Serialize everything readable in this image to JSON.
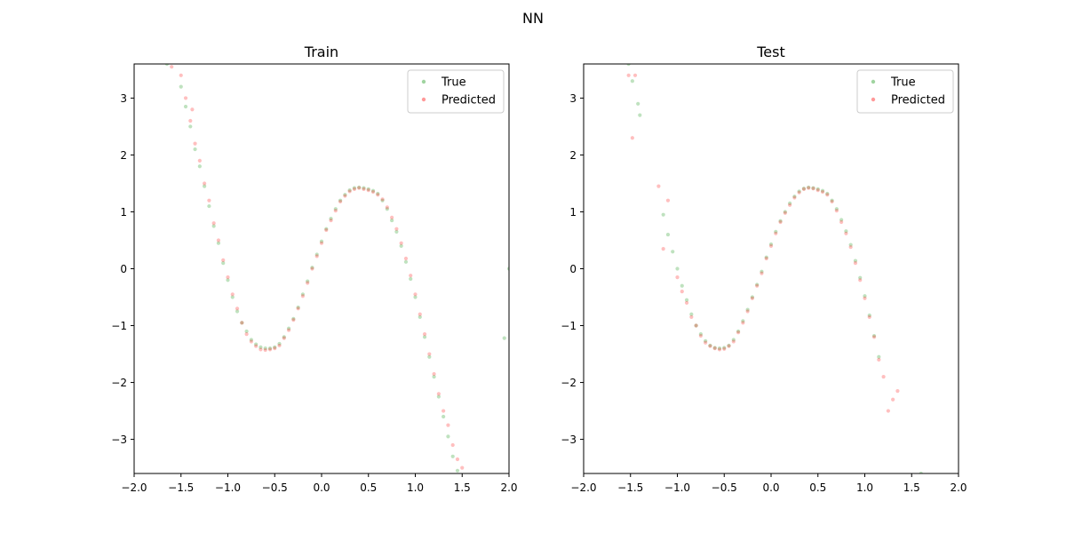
{
  "figure": {
    "title": "NN"
  },
  "colors": {
    "true": "#2ca02c",
    "predicted": "#ff0000",
    "axis": "#000000"
  },
  "chart_data": [
    {
      "type": "scatter",
      "title": "Train",
      "xlabel": "",
      "ylabel": "",
      "xlim": [
        -2.0,
        2.0
      ],
      "ylim": [
        -3.6,
        3.6
      ],
      "xticks": [
        -2.0,
        -1.5,
        -1.0,
        -0.5,
        0.0,
        0.5,
        1.0,
        1.5,
        2.0
      ],
      "xtick_labels": [
        "−2.0",
        "−1.5",
        "−1.0",
        "−0.5",
        "0.0",
        "0.5",
        "1.0",
        "1.5",
        "2.0"
      ],
      "yticks": [
        -3,
        -2,
        -1,
        0,
        1,
        2,
        3
      ],
      "ytick_labels": [
        "−3",
        "−2",
        "−1",
        "0",
        "1",
        "2",
        "3"
      ],
      "grid": false,
      "legend": "top-right",
      "series": [
        {
          "name": "True",
          "color": "#2ca02c",
          "alpha": 0.3,
          "x": [
            -1.65,
            -1.5,
            -1.45,
            -1.4,
            -1.35,
            -1.3,
            -1.25,
            -1.2,
            -1.15,
            -1.1,
            -1.05,
            -1.0,
            -0.95,
            -0.9,
            -0.85,
            -0.8,
            -0.75,
            -0.7,
            -0.65,
            -0.6,
            -0.55,
            -0.5,
            -0.45,
            -0.4,
            -0.35,
            -0.3,
            -0.25,
            -0.2,
            -0.15,
            -0.1,
            -0.05,
            0.0,
            0.05,
            0.1,
            0.15,
            0.2,
            0.25,
            0.3,
            0.35,
            0.4,
            0.45,
            0.5,
            0.55,
            0.6,
            0.65,
            0.7,
            0.75,
            0.8,
            0.85,
            0.9,
            0.95,
            1.0,
            1.05,
            1.1,
            1.15,
            1.2,
            1.25,
            1.3,
            1.35,
            1.4,
            1.45,
            1.5,
            1.55,
            1.6,
            1.95,
            2.0
          ],
          "y": [
            3.6,
            3.2,
            2.85,
            2.5,
            2.1,
            1.8,
            1.45,
            1.1,
            0.75,
            0.45,
            0.1,
            -0.2,
            -0.5,
            -0.75,
            -0.95,
            -1.1,
            -1.25,
            -1.33,
            -1.38,
            -1.4,
            -1.4,
            -1.38,
            -1.32,
            -1.2,
            -1.05,
            -0.88,
            -0.68,
            -0.45,
            -0.22,
            0.02,
            0.25,
            0.48,
            0.7,
            0.88,
            1.05,
            1.2,
            1.3,
            1.38,
            1.42,
            1.43,
            1.42,
            1.4,
            1.37,
            1.32,
            1.2,
            1.05,
            0.85,
            0.65,
            0.4,
            0.12,
            -0.18,
            -0.5,
            -0.85,
            -1.2,
            -1.55,
            -1.9,
            -2.25,
            -2.6,
            -2.95,
            -3.3,
            -3.55,
            -3.7,
            -3.8,
            -3.85,
            -1.22,
            0.0
          ]
        },
        {
          "name": "Predicted",
          "color": "#ff0000",
          "alpha": 0.25,
          "x": [
            -1.6,
            -1.5,
            -1.45,
            -1.4,
            -1.38,
            -1.35,
            -1.3,
            -1.25,
            -1.2,
            -1.15,
            -1.1,
            -1.05,
            -1.0,
            -0.95,
            -0.9,
            -0.85,
            -0.8,
            -0.75,
            -0.7,
            -0.65,
            -0.6,
            -0.55,
            -0.5,
            -0.45,
            -0.4,
            -0.35,
            -0.3,
            -0.25,
            -0.2,
            -0.15,
            -0.1,
            -0.05,
            0.0,
            0.05,
            0.1,
            0.15,
            0.2,
            0.25,
            0.3,
            0.35,
            0.4,
            0.45,
            0.5,
            0.55,
            0.6,
            0.65,
            0.7,
            0.75,
            0.8,
            0.85,
            0.9,
            0.95,
            1.0,
            1.05,
            1.1,
            1.15,
            1.2,
            1.25,
            1.3,
            1.35,
            1.4,
            1.45,
            1.5
          ],
          "y": [
            3.55,
            3.4,
            3.0,
            2.6,
            2.8,
            2.2,
            1.9,
            1.5,
            1.2,
            0.8,
            0.5,
            0.15,
            -0.15,
            -0.45,
            -0.7,
            -0.95,
            -1.15,
            -1.28,
            -1.36,
            -1.42,
            -1.43,
            -1.42,
            -1.4,
            -1.35,
            -1.22,
            -1.08,
            -0.9,
            -0.7,
            -0.48,
            -0.25,
            0.0,
            0.22,
            0.45,
            0.68,
            0.85,
            1.02,
            1.18,
            1.28,
            1.36,
            1.4,
            1.42,
            1.4,
            1.38,
            1.35,
            1.3,
            1.22,
            1.08,
            0.9,
            0.7,
            0.45,
            0.18,
            -0.12,
            -0.45,
            -0.8,
            -1.15,
            -1.5,
            -1.85,
            -2.2,
            -2.5,
            -2.75,
            -3.1,
            -3.35,
            -3.5
          ]
        }
      ]
    },
    {
      "type": "scatter",
      "title": "Test",
      "xlabel": "",
      "ylabel": "",
      "xlim": [
        -2.0,
        2.0
      ],
      "ylim": [
        -3.6,
        3.6
      ],
      "xticks": [
        -2.0,
        -1.5,
        -1.0,
        -0.5,
        0.0,
        0.5,
        1.0,
        1.5,
        2.0
      ],
      "xtick_labels": [
        "−2.0",
        "−1.5",
        "−1.0",
        "−0.5",
        "0.0",
        "0.5",
        "1.0",
        "1.5",
        "2.0"
      ],
      "yticks": [
        -3,
        -2,
        -1,
        0,
        1,
        2,
        3
      ],
      "ytick_labels": [
        "−3",
        "−2",
        "−1",
        "0",
        "1",
        "2",
        "3"
      ],
      "grid": false,
      "legend": "top-right",
      "series": [
        {
          "name": "True",
          "color": "#2ca02c",
          "alpha": 0.3,
          "x": [
            -1.52,
            -1.48,
            -1.42,
            -1.4,
            -1.15,
            -1.1,
            -1.05,
            -1.0,
            -0.95,
            -0.9,
            -0.85,
            -0.8,
            -0.75,
            -0.7,
            -0.65,
            -0.6,
            -0.55,
            -0.5,
            -0.45,
            -0.4,
            -0.35,
            -0.3,
            -0.25,
            -0.2,
            -0.15,
            -0.1,
            -0.05,
            0.0,
            0.05,
            0.1,
            0.15,
            0.2,
            0.25,
            0.3,
            0.35,
            0.4,
            0.45,
            0.5,
            0.55,
            0.6,
            0.65,
            0.7,
            0.75,
            0.8,
            0.85,
            0.9,
            0.95,
            1.0,
            1.05,
            1.1,
            1.15,
            1.6
          ],
          "y": [
            3.6,
            3.3,
            2.9,
            2.7,
            0.95,
            0.6,
            0.3,
            0.0,
            -0.3,
            -0.55,
            -0.8,
            -1.0,
            -1.15,
            -1.27,
            -1.35,
            -1.39,
            -1.4,
            -1.39,
            -1.35,
            -1.25,
            -1.1,
            -0.92,
            -0.72,
            -0.5,
            -0.28,
            -0.05,
            0.2,
            0.43,
            0.65,
            0.84,
            1.0,
            1.15,
            1.27,
            1.36,
            1.41,
            1.43,
            1.42,
            1.4,
            1.37,
            1.32,
            1.2,
            1.05,
            0.86,
            0.66,
            0.42,
            0.14,
            -0.16,
            -0.48,
            -0.82,
            -1.18,
            -1.55,
            -3.6
          ]
        },
        {
          "name": "Predicted",
          "color": "#ff0000",
          "alpha": 0.25,
          "x": [
            -1.52,
            -1.45,
            -1.48,
            -1.2,
            -1.15,
            -1.1,
            -1.0,
            -0.95,
            -0.9,
            -0.85,
            -0.8,
            -0.75,
            -0.7,
            -0.65,
            -0.6,
            -0.55,
            -0.5,
            -0.45,
            -0.4,
            -0.35,
            -0.3,
            -0.25,
            -0.2,
            -0.15,
            -0.1,
            -0.05,
            0.0,
            0.05,
            0.1,
            0.15,
            0.2,
            0.25,
            0.3,
            0.35,
            0.4,
            0.45,
            0.5,
            0.55,
            0.6,
            0.65,
            0.7,
            0.75,
            0.8,
            0.85,
            0.9,
            0.95,
            1.0,
            1.05,
            1.1,
            1.15,
            1.2,
            1.25,
            1.3,
            1.35
          ],
          "y": [
            3.4,
            3.4,
            2.3,
            1.45,
            0.35,
            1.2,
            -0.15,
            -0.4,
            -0.6,
            -0.85,
            -1.0,
            -1.18,
            -1.3,
            -1.36,
            -1.4,
            -1.42,
            -1.41,
            -1.36,
            -1.28,
            -1.12,
            -0.95,
            -0.75,
            -0.52,
            -0.3,
            -0.08,
            0.18,
            0.4,
            0.62,
            0.82,
            0.98,
            1.12,
            1.25,
            1.34,
            1.4,
            1.42,
            1.41,
            1.38,
            1.35,
            1.3,
            1.18,
            1.02,
            0.82,
            0.62,
            0.38,
            0.1,
            -0.2,
            -0.52,
            -0.85,
            -1.2,
            -1.6,
            -1.9,
            -2.5,
            -2.3,
            -2.15
          ]
        }
      ]
    }
  ]
}
